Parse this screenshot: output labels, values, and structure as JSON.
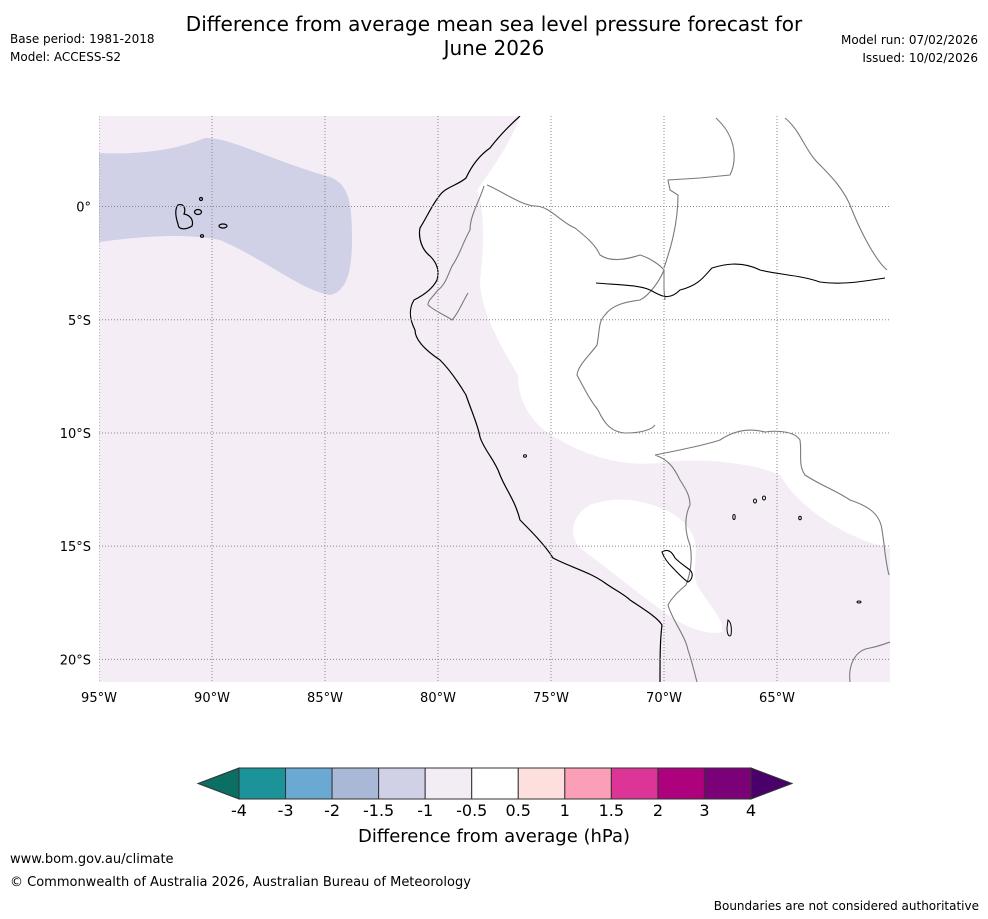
{
  "header": {
    "title_line1": "Difference from average mean sea level pressure forecast for",
    "title_line2": "June 2026",
    "base_period": "Base period: 1981-2018",
    "model": "Model: ACCESS-S2",
    "model_run": "Model run: 07/02/2026",
    "issued": "Issued: 10/02/2026"
  },
  "map": {
    "lon_labels": [
      "95°W",
      "90°W",
      "85°W",
      "80°W",
      "75°W",
      "70°W",
      "65°W"
    ],
    "lon_values": [
      -95,
      -90,
      -85,
      -80,
      -75,
      -70,
      -65
    ],
    "lat_labels": [
      "0°",
      "5°S",
      "10°S",
      "15°S",
      "20°S"
    ],
    "lat_values": [
      0,
      -5,
      -10,
      -15,
      -20
    ],
    "lon_range": [
      -95,
      -60
    ],
    "lat_range": [
      -21,
      4
    ]
  },
  "colorbar": {
    "ticks": [
      "-4",
      "-3",
      "-2",
      "-1.5",
      "-1",
      "-0.5",
      "0.5",
      "1",
      "1.5",
      "2",
      "3",
      "4"
    ],
    "colors": [
      "#0b6f63",
      "#1b9399",
      "#6aa9d2",
      "#a9b8d6",
      "#d0d1e6",
      "#f2ecf5",
      "#ffffff",
      "#fde0dd",
      "#fa9fb5",
      "#dd3497",
      "#ae017e",
      "#7a0177",
      "#49006a"
    ],
    "label": "Difference from average (hPa)"
  },
  "footer": {
    "url": "www.bom.gov.au/climate",
    "copyright": "© Commonwealth of Australia 2026, Australian Bureau of Meteorology",
    "note": "Boundaries are not considered authoritative"
  }
}
